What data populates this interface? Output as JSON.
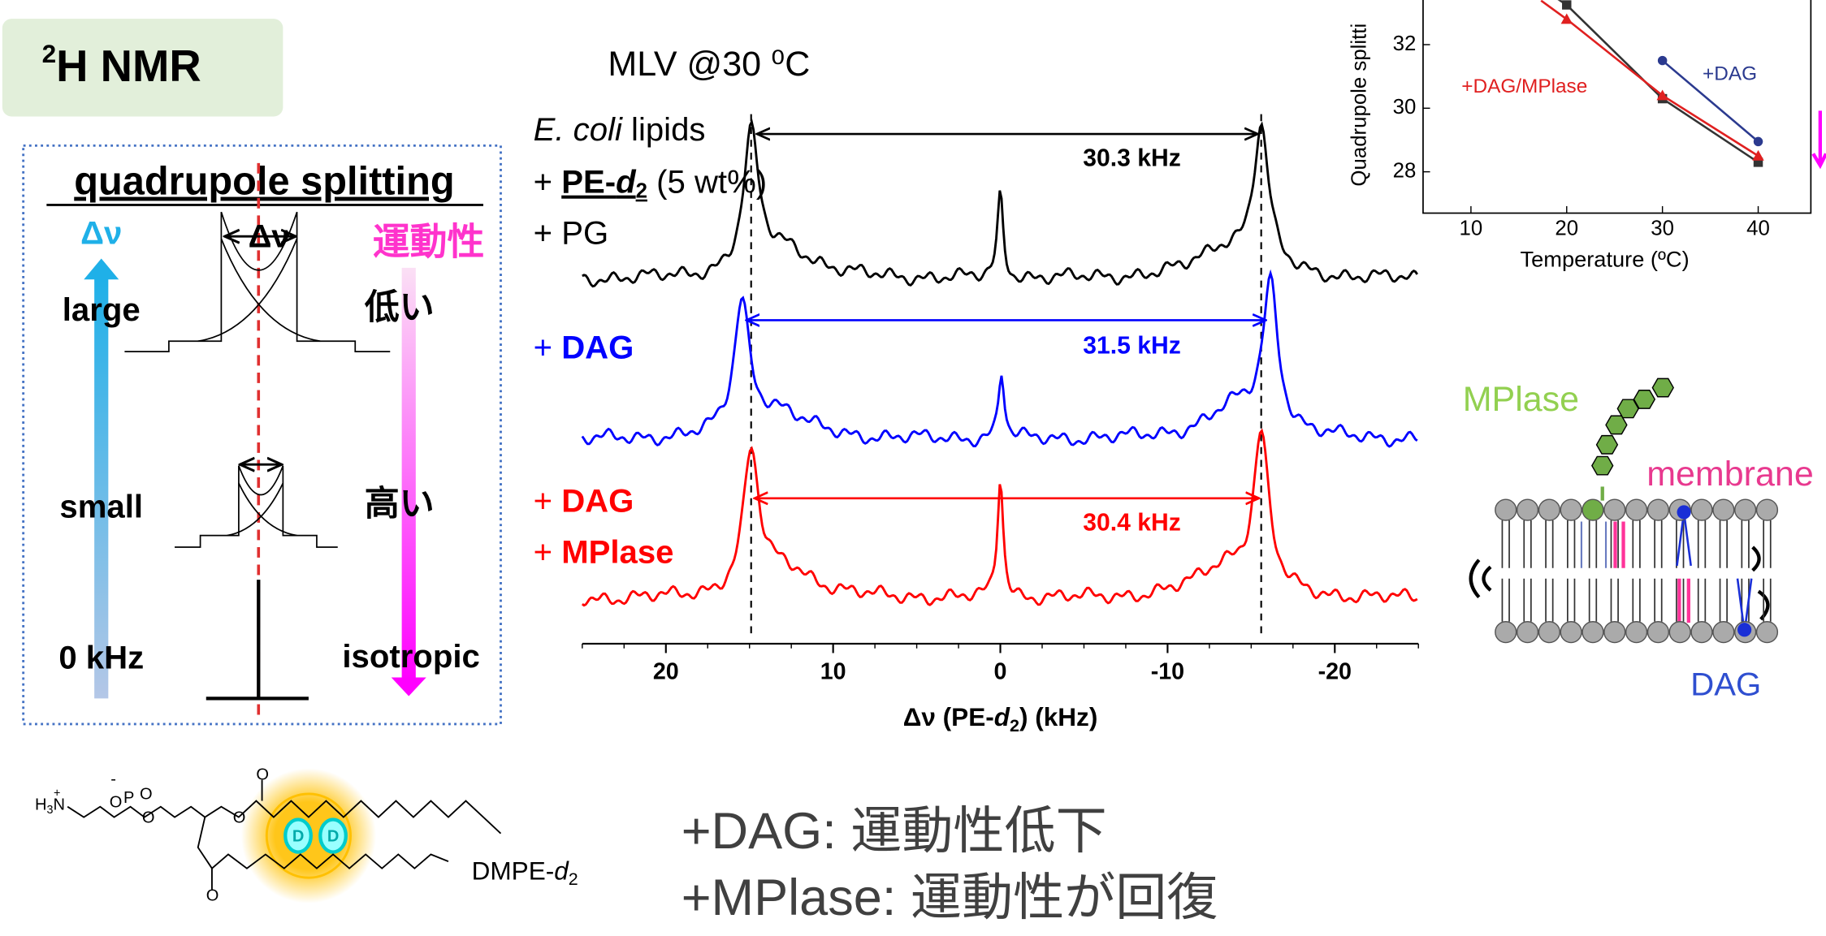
{
  "title": {
    "sup": "2",
    "text": "H NMR"
  },
  "schematic": {
    "heading": "quadrupole splitting",
    "left_axis": "Δν",
    "right_axis": "運動性",
    "delta": "Δν",
    "rows": [
      {
        "left": "large",
        "right": "低い"
      },
      {
        "left": "small",
        "right": "高い"
      },
      {
        "left": "0 kHz",
        "right": "isotropic"
      }
    ]
  },
  "chart_data": [
    {
      "type": "spectrum",
      "subtitle": "MLV @30 ⁰C",
      "x_label": [
        "Δν (PE-",
        "d",
        "2",
        ") (kHz)"
      ],
      "xlim": [
        25,
        -25
      ],
      "xticks": [
        20,
        10,
        0,
        -10,
        -20
      ],
      "samples": [
        {
          "color": "#000000",
          "lines": [
            [
              "E. coli",
              " lipids"
            ],
            [
              "+ ",
              "PE-",
              "d",
              "2",
              " (5 wt%)"
            ],
            [
              "+ PG"
            ]
          ],
          "splitting": "30.3 kHz"
        },
        {
          "color": "#0000ff",
          "lines": [
            [
              "+ ",
              "DAG"
            ]
          ],
          "splitting": "31.5 kHz"
        },
        {
          "color": "#ff0000",
          "lines": [
            [
              "+ ",
              "DAG"
            ],
            [
              "+ ",
              "MPlase"
            ]
          ],
          "splitting": "30.4 kHz"
        }
      ]
    },
    {
      "type": "line",
      "x_label": "Temperature (ºC)",
      "y_label": "Quadrupole splitti",
      "x": [
        20,
        30,
        40
      ],
      "xlim": [
        5,
        45.5
      ],
      "ylim": [
        26.7,
        33.4
      ],
      "xticks": [
        10,
        20,
        30,
        40
      ],
      "yticks": [
        28,
        30,
        32
      ],
      "series": [
        {
          "color": "#333333",
          "marker": "square",
          "values": [
            33.25,
            30.3,
            28.3
          ]
        },
        {
          "name": "+DAG/MPlase",
          "color": "#e02020",
          "marker": "triangle",
          "values": [
            32.8,
            30.4,
            28.5
          ]
        },
        {
          "name": "+DAG",
          "color": "#2b3a8f",
          "marker": "circle",
          "values": [
            null,
            31.5,
            28.95
          ]
        }
      ]
    }
  ],
  "membrane": {
    "mplase": "MPlase",
    "membrane": "membrane",
    "dag": "DAG"
  },
  "molecule": {
    "atoms": [
      "H",
      "3",
      "N",
      "+",
      "O",
      "-",
      "P",
      "O",
      "O",
      "O",
      "O",
      "O",
      "D",
      "D"
    ],
    "name": [
      "DMPE-",
      "d",
      "2"
    ]
  },
  "conclusions": [
    [
      "+DAG:",
      " 運動性低下"
    ],
    [
      "+MPlase:",
      " 運動性が回復"
    ]
  ]
}
